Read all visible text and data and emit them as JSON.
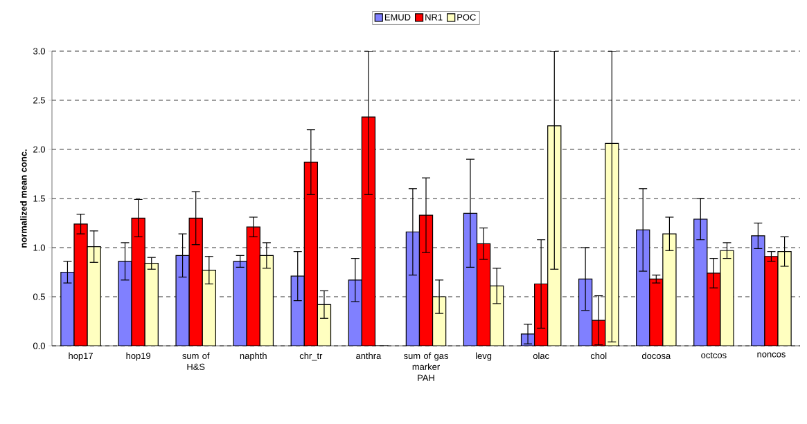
{
  "chart_data": {
    "type": "bar",
    "ylabel": "normalized mean conc.",
    "categories": [
      "hop17",
      "hop19",
      "sum of H&S",
      "naphth",
      "chr_tr",
      "anthra",
      "sum of gas marker PAH",
      "levg",
      "olac",
      "chol",
      "docosa",
      "octcos",
      "noncos"
    ],
    "series": [
      {
        "name": "EMUD",
        "color": "#8080ff",
        "values": [
          0.75,
          0.86,
          0.92,
          0.86,
          0.71,
          0.67,
          1.16,
          1.35,
          0.12,
          0.68,
          1.18,
          1.29,
          1.12
        ],
        "errors": [
          0.11,
          0.19,
          0.22,
          0.06,
          0.25,
          0.22,
          0.44,
          0.55,
          0.1,
          0.32,
          0.42,
          0.21,
          0.13
        ]
      },
      {
        "name": "NR1",
        "color": "#ff0000",
        "values": [
          1.24,
          1.3,
          1.3,
          1.21,
          1.87,
          2.33,
          1.33,
          1.04,
          0.63,
          0.26,
          0.68,
          0.74,
          0.91
        ],
        "errors": [
          0.1,
          0.19,
          0.27,
          0.1,
          0.33,
          [
            1.54,
            3.0
          ],
          0.38,
          0.16,
          0.45,
          0.25,
          0.04,
          0.15,
          0.05
        ]
      },
      {
        "name": "POC",
        "color": "#ffffc0",
        "values": [
          1.01,
          0.84,
          0.77,
          0.92,
          0.42,
          0.0,
          0.5,
          0.61,
          2.24,
          2.06,
          1.14,
          0.97,
          0.96
        ],
        "errors": [
          0.16,
          0.06,
          0.14,
          0.13,
          0.14,
          null,
          0.17,
          0.18,
          [
            0.78,
            3.0
          ],
          [
            0.04,
            3.0
          ],
          0.17,
          0.08,
          0.15
        ]
      }
    ],
    "ylim": [
      0,
      3.0
    ],
    "yticks": [
      {
        "value": 0,
        "label": "0.0"
      },
      {
        "value": 0.5,
        "label": "0.5"
      },
      {
        "value": 1.0,
        "label": "1.0"
      },
      {
        "value": 1.5,
        "label": "1.5"
      },
      {
        "value": 2.0,
        "label": "2.0"
      },
      {
        "value": 2.5,
        "label": "2.5"
      },
      {
        "value": 3.0,
        "label": "3.0"
      }
    ],
    "grid": "y",
    "legend": "top"
  }
}
